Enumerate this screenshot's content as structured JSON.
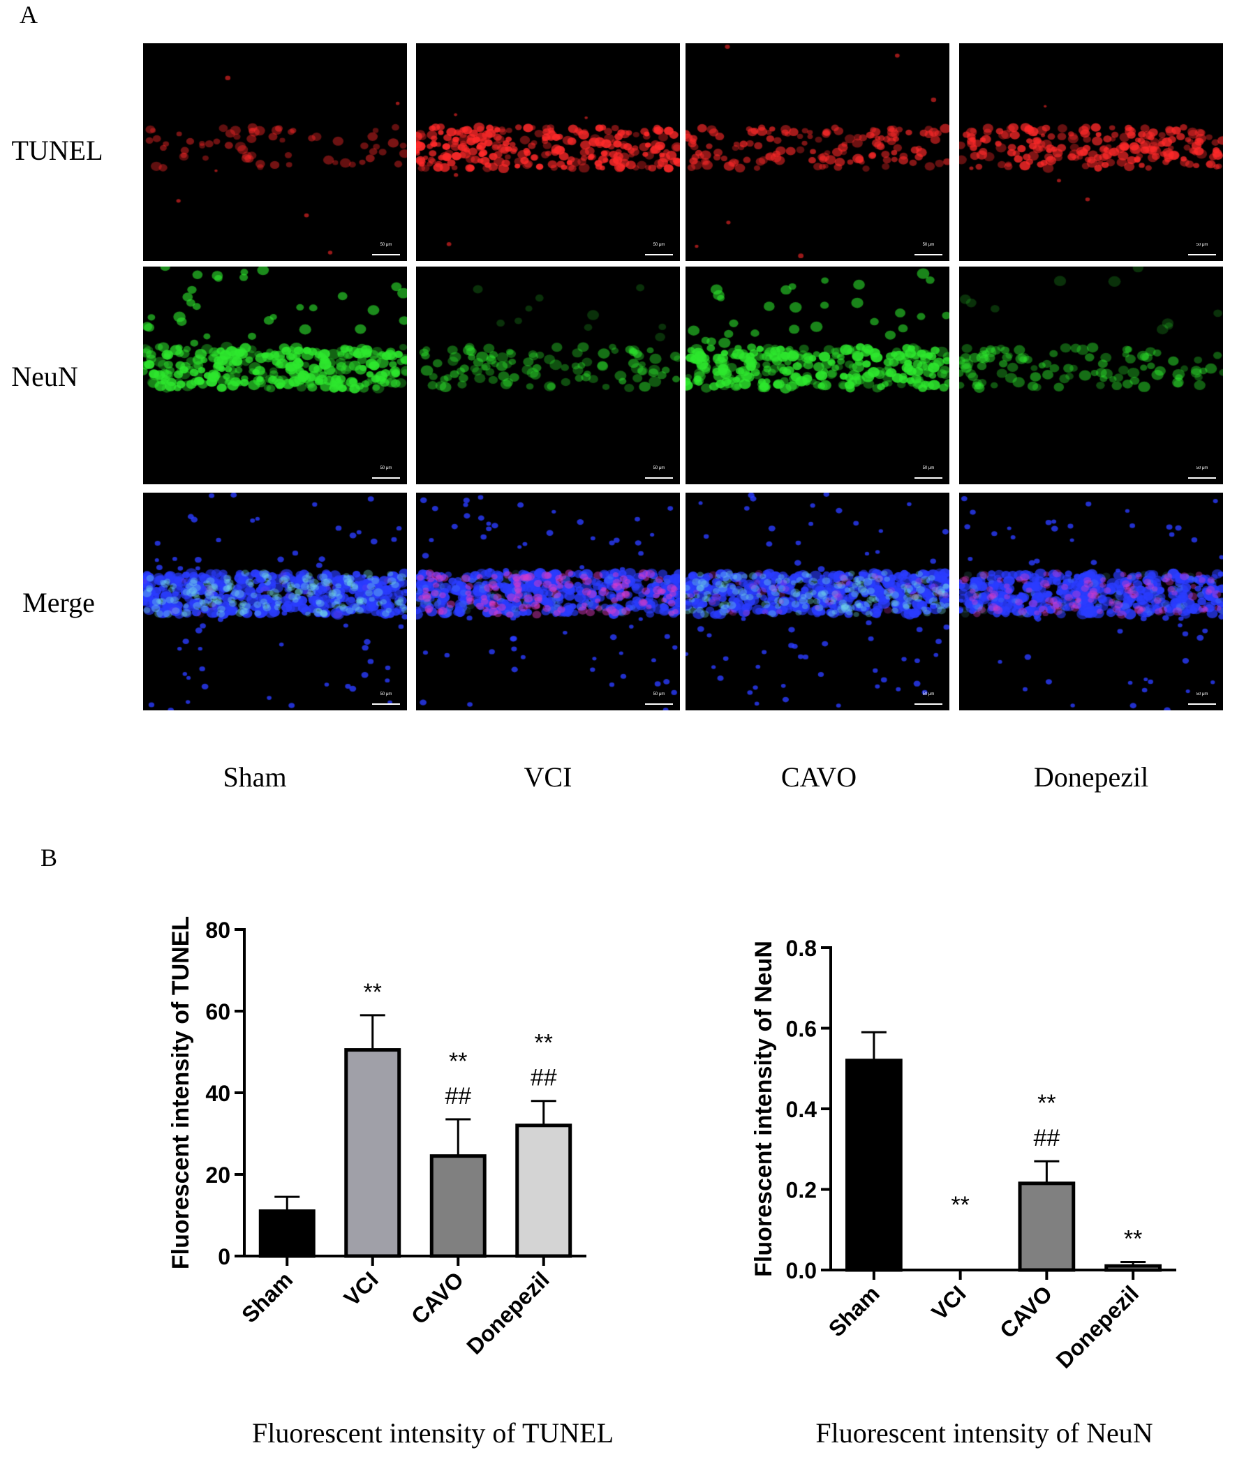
{
  "panel_a_label": "A",
  "panel_b_label": "B",
  "row_labels": [
    "TUNEL",
    "NeuN",
    "Merge"
  ],
  "col_labels": [
    "Sham",
    "VCI",
    "CAVO",
    "Donepezil"
  ],
  "scale_bar_text": "50 μm",
  "captions": {
    "left": "Fluorescent intensity of TUNEL",
    "right": "Fluorescent intensity of  NeuN"
  },
  "colors": {
    "tunel": "#ff2a2a",
    "neun": "#2ee82e",
    "dapi": "#2a3cff",
    "sham_bar": "#000000",
    "vci_bar": "#a0a0a8",
    "cavo_bar": "#808080",
    "donepezil_bar": "#d4d4d4"
  },
  "chart_data": [
    {
      "type": "bar",
      "categories": [
        "Sham",
        "VCI",
        "CAVO",
        "Donepezil"
      ],
      "values": [
        11,
        50.5,
        24.5,
        32
      ],
      "errors": [
        3.5,
        8.5,
        9,
        6
      ],
      "annotations": [
        [],
        [
          "**"
        ],
        [
          "**",
          "##"
        ],
        [
          "**",
          "##"
        ]
      ],
      "ylabel": "Fluorescent intensity of TUNEL",
      "ylim": [
        0,
        80
      ],
      "yticks": [
        "0",
        "20",
        "40",
        "60",
        "80"
      ],
      "colors": [
        "#000000",
        "#a0a0a8",
        "#808080",
        "#d4d4d4"
      ]
    },
    {
      "type": "bar",
      "categories": [
        "Sham",
        "VCI",
        "CAVO",
        "Donepezil"
      ],
      "values": [
        0.52,
        0,
        0.215,
        0.01
      ],
      "errors": [
        0.07,
        0,
        0.055,
        0.01
      ],
      "annotations": [
        [],
        [
          "**"
        ],
        [
          "**",
          "##"
        ],
        [
          "**"
        ]
      ],
      "ylabel": "Fluorescent intensity of NeuN",
      "ylim": [
        0,
        0.8
      ],
      "yticks": [
        "0.0",
        "0.2",
        "0.4",
        "0.6",
        "0.8"
      ],
      "colors": [
        "#000000",
        "#a0a0a8",
        "#808080",
        "#d4d4d4"
      ]
    }
  ]
}
